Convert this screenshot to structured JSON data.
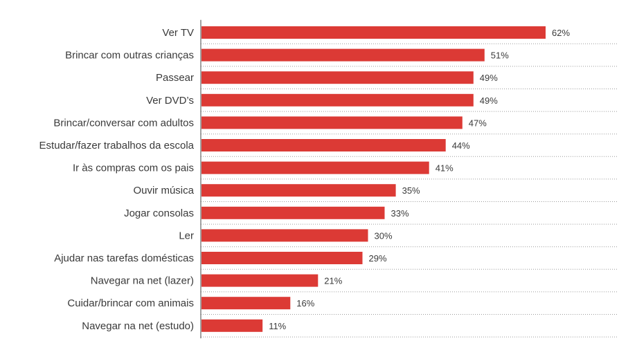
{
  "chart_data": {
    "type": "bar",
    "orientation": "horizontal",
    "categories": [
      "Ver TV",
      "Brincar com outras crianças",
      "Passear",
      "Ver DVD’s",
      "Brincar/conversar com adultos",
      "Estudar/fazer trabalhos da escola",
      "Ir às compras com os pais",
      "Ouvir música",
      "Jogar consolas",
      "Ler",
      "Ajudar nas tarefas domésticas",
      "Navegar na net (lazer)",
      "Cuidar/brincar com animais",
      "Navegar na net (estudo)"
    ],
    "values": [
      62,
      51,
      49,
      49,
      47,
      44,
      41,
      35,
      33,
      30,
      29,
      21,
      16,
      11
    ],
    "value_labels": [
      "62%",
      "51%",
      "49%",
      "49%",
      "47%",
      "44%",
      "41%",
      "35%",
      "33%",
      "30%",
      "29%",
      "21%",
      "16%",
      "11%"
    ],
    "unit": "%",
    "xlim": [
      0,
      62
    ],
    "grid": "dotted row separators",
    "legend": "none",
    "bar_color": "#dc3a35"
  }
}
